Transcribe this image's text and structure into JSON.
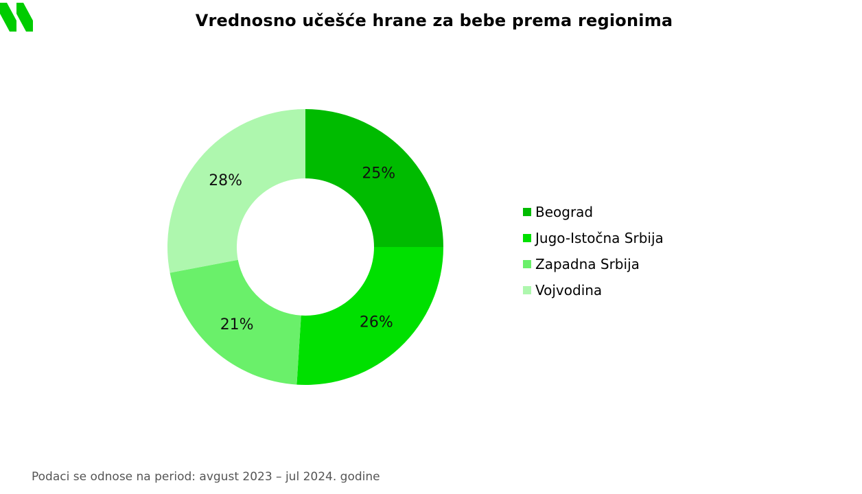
{
  "title": "Vrednosno učešće hrane za bebe prema regionima",
  "footnote": "Podaci se odnose na period: avgust 2023 – jul 2024. godine",
  "logo": {
    "icon": "brand-logo-icon",
    "color": "#00cc00"
  },
  "chart_data": {
    "type": "pie",
    "variant": "donut",
    "title": "Vrednosno učešće hrane za bebe prema regionima",
    "legend_position": "right",
    "categories": [
      "Beograd",
      "Jugo-Istočna Srbija",
      "Zapadna Srbija",
      "Vojvodina"
    ],
    "values": [
      25,
      26,
      21,
      28
    ],
    "labels": [
      "25%",
      "26%",
      "21%",
      "28%"
    ],
    "colors": [
      "#00bb00",
      "#00e000",
      "#6af06a",
      "#aef7ae"
    ]
  }
}
